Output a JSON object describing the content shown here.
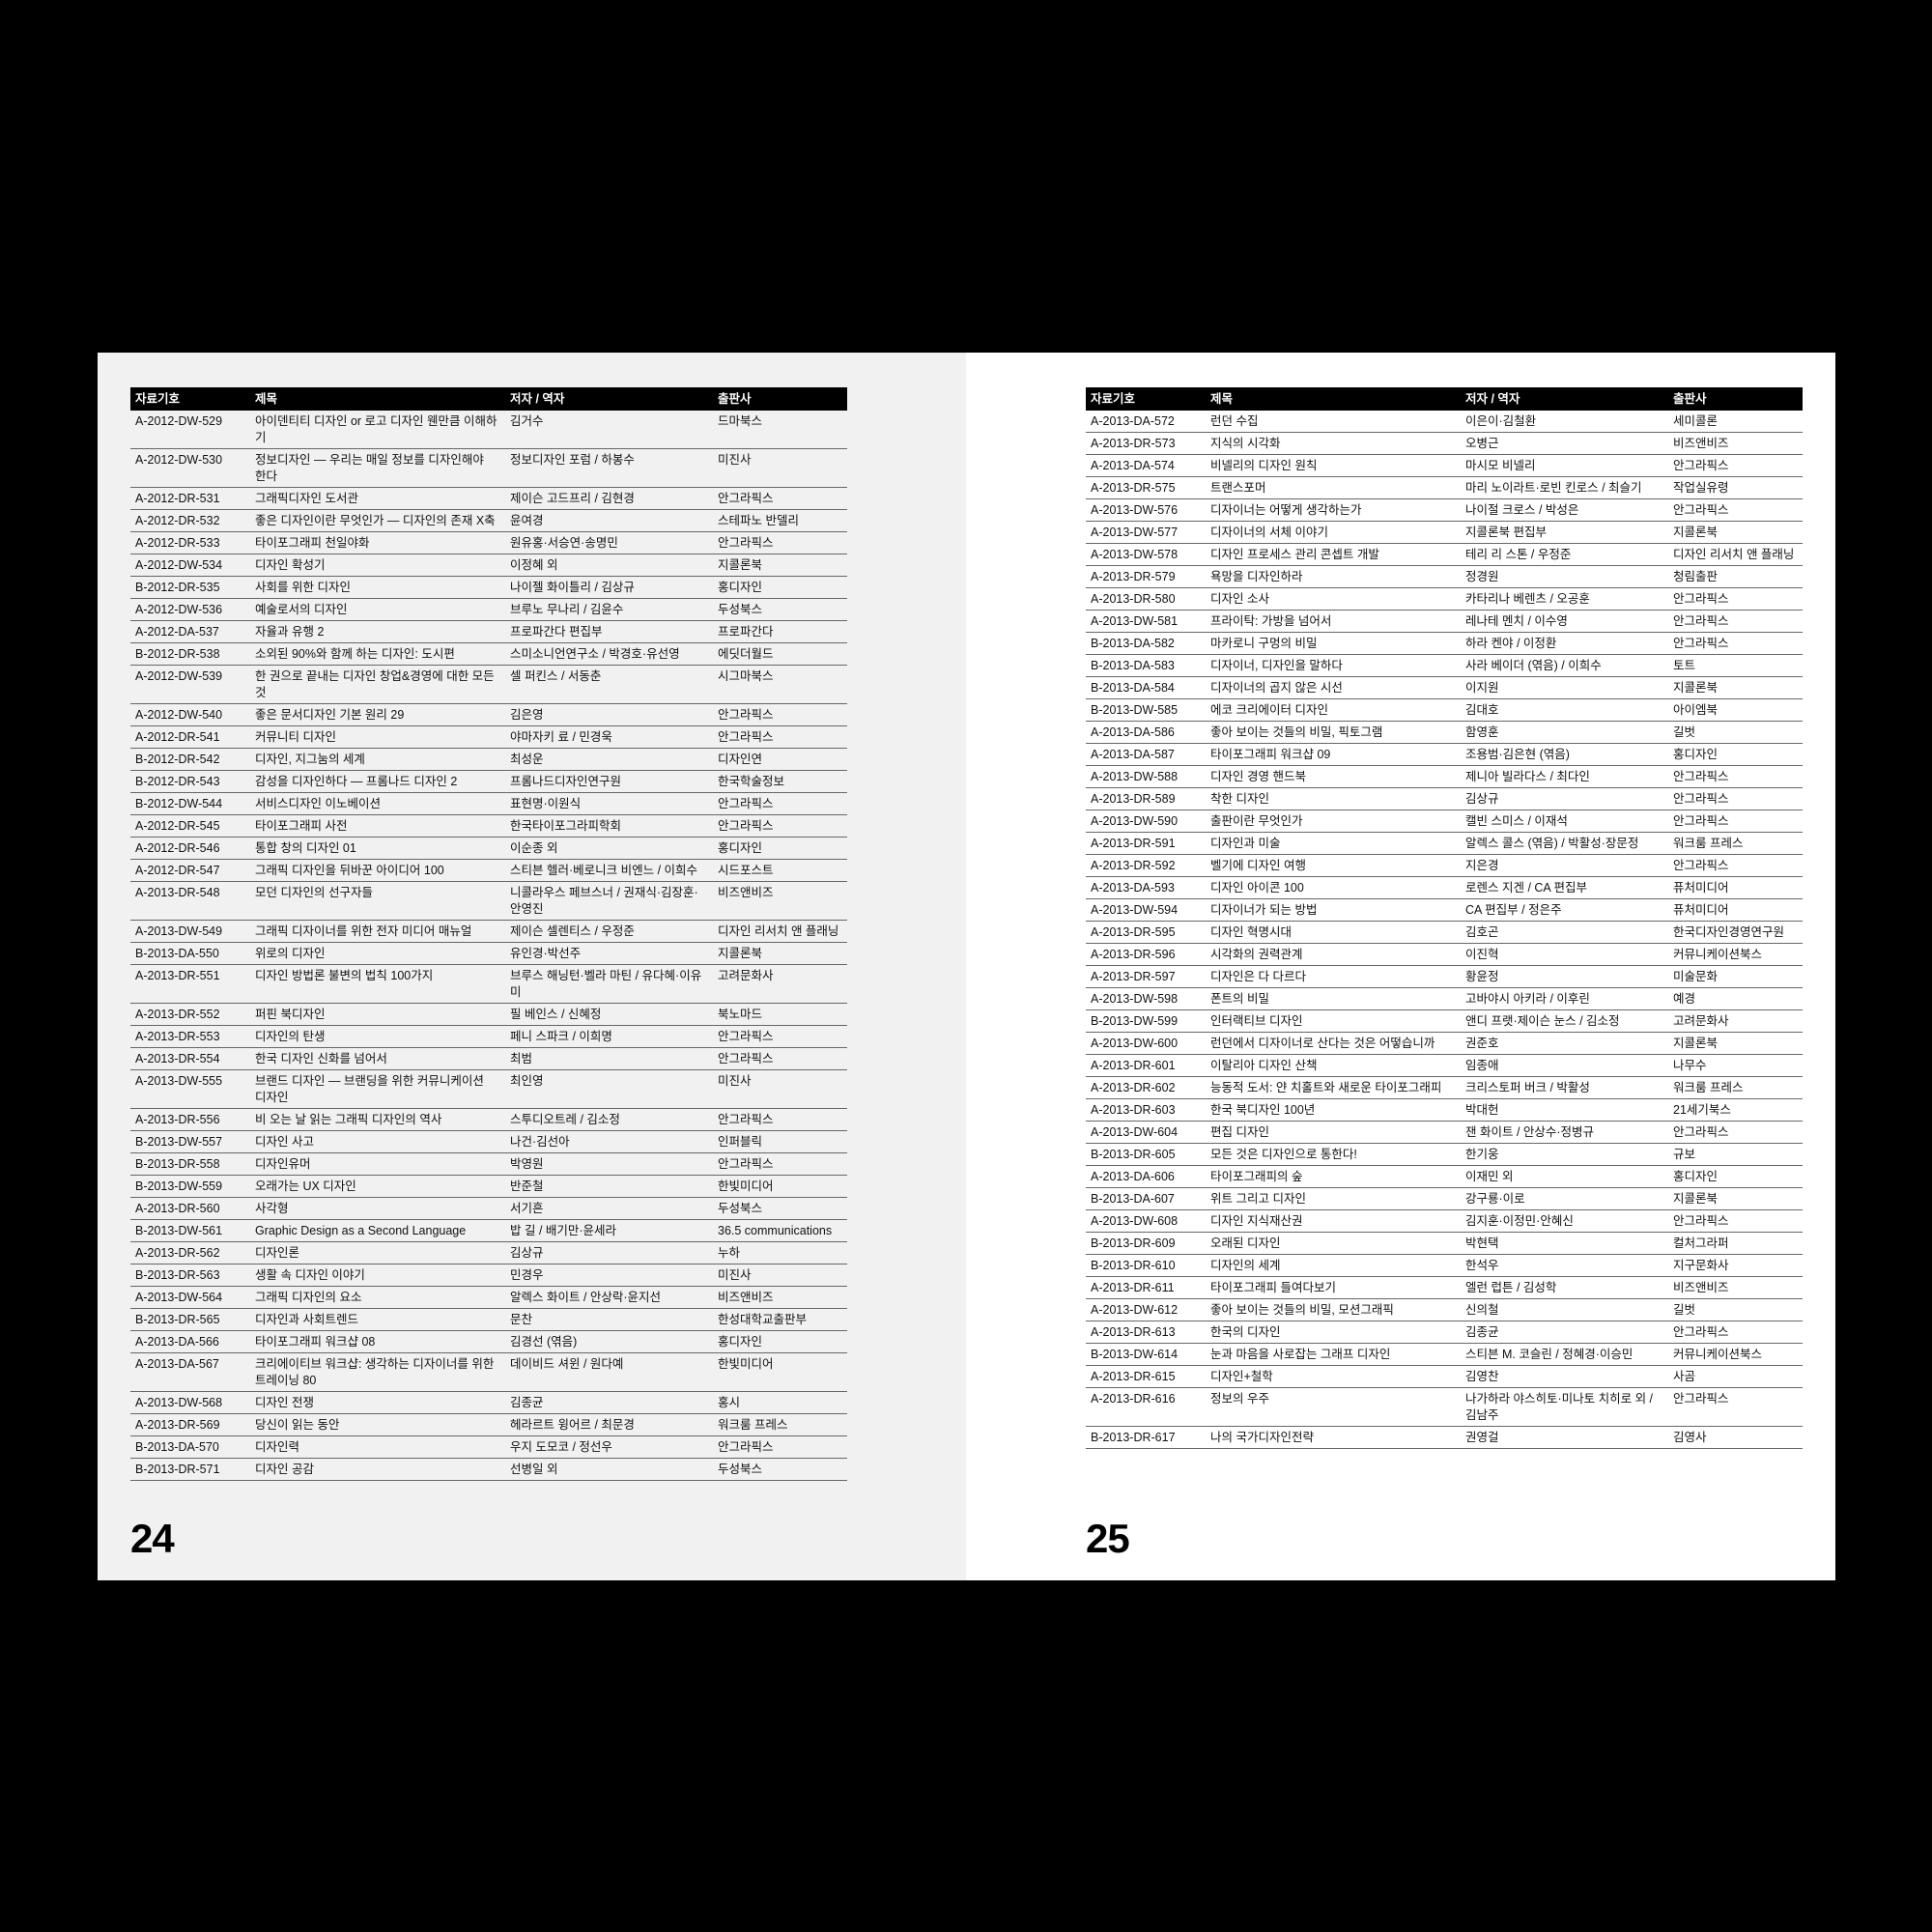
{
  "columns": [
    "자료기호",
    "제목",
    "저자 / 역자",
    "출판사"
  ],
  "left_page": {
    "page_number": "24",
    "rows": [
      [
        "A-2012-DW-529",
        "아이덴티티 디자인 or 로고 디자인 웬만큼 이해하기",
        "김거수",
        "드마북스"
      ],
      [
        "A-2012-DW-530",
        "정보디자인 — 우리는 매일 정보를 디자인해야 한다",
        "정보디자인 포럼 / 하봉수",
        "미진사"
      ],
      [
        "A-2012-DR-531",
        "그래픽디자인 도서관",
        "제이슨 고드프리 / 김현경",
        "안그라픽스"
      ],
      [
        "A-2012-DR-532",
        "좋은 디자인이란 무엇인가 — 디자인의 존재 X축",
        "윤여경",
        "스테파노 반델리"
      ],
      [
        "A-2012-DR-533",
        "타이포그래피 천일야화",
        "원유홍·서승연·송명민",
        "안그라픽스"
      ],
      [
        "A-2012-DW-534",
        "디자인 확성기",
        "이정혜 외",
        "지콜론북"
      ],
      [
        "B-2012-DR-535",
        "사회를 위한 디자인",
        "나이젤 화이틀리 / 김상규",
        "홍디자인"
      ],
      [
        "A-2012-DW-536",
        "예술로서의 디자인",
        "브루노 무나리 / 김윤수",
        "두성북스"
      ],
      [
        "A-2012-DA-537",
        "자율과 유행 2",
        "프로파간다 편집부",
        "프로파간다"
      ],
      [
        "B-2012-DR-538",
        "소외된 90%와 함께 하는 디자인: 도시편",
        "스미소니언연구소 / 박경호·유선영",
        "에딧더월드"
      ],
      [
        "A-2012-DW-539",
        "한 권으로 끝내는 디자인 창업&경영에 대한 모든 것",
        "셀 퍼킨스 / 서동춘",
        "시그마북스"
      ],
      [
        "A-2012-DW-540",
        "좋은 문서디자인 기본 원리 29",
        "김은영",
        "안그라픽스"
      ],
      [
        "A-2012-DR-541",
        "커뮤니티 디자인",
        "야마자키 료 / 민경욱",
        "안그라픽스"
      ],
      [
        "B-2012-DR-542",
        "디자인, 지그눔의 세계",
        "최성운",
        "디자인연"
      ],
      [
        "B-2012-DR-543",
        "감성을 디자인하다 — 프롬나드 디자인 2",
        "프롬나드디자인연구원",
        "한국학술정보"
      ],
      [
        "B-2012-DW-544",
        "서비스디자인 이노베이션",
        "표현명·이원식",
        "안그라픽스"
      ],
      [
        "A-2012-DR-545",
        "타이포그래피 사전",
        "한국타이포그라피학회",
        "안그라픽스"
      ],
      [
        "A-2012-DR-546",
        "통합 창의 디자인 01",
        "이순종 외",
        "홍디자인"
      ],
      [
        "A-2012-DR-547",
        "그래픽 디자인을 뒤바꾼 아이디어 100",
        "스티븐 헬러·베로니크 비엔느 / 이희수",
        "시드포스트"
      ],
      [
        "A-2013-DR-548",
        "모던 디자인의 선구자들",
        "니콜라우스 페브스너 / 권재식·김장훈·안영진",
        "비즈앤비즈"
      ],
      [
        "A-2013-DW-549",
        "그래픽 디자이너를 위한 전자 미디어 매뉴얼",
        "제이슨 셀렌티스 / 우정준",
        "디자인 리서치 앤 플래닝"
      ],
      [
        "B-2013-DA-550",
        "위로의 디자인",
        "유인경·박선주",
        "지콜론북"
      ],
      [
        "A-2013-DR-551",
        "디자인 방법론 불변의 법칙 100가지",
        "브루스 해닝턴·벨라 마틴 / 유다혜·이유미",
        "고려문화사"
      ],
      [
        "A-2013-DR-552",
        "퍼핀 북디자인",
        "필 베인스 / 신혜정",
        "북노마드"
      ],
      [
        "A-2013-DR-553",
        "디자인의 탄생",
        "페니 스파크 / 이희명",
        "안그라픽스"
      ],
      [
        "A-2013-DR-554",
        "한국 디자인 신화를 넘어서",
        "최범",
        "안그라픽스"
      ],
      [
        "A-2013-DW-555",
        "브랜드 디자인 — 브랜딩을 위한 커뮤니케이션 디자인",
        "최인영",
        "미진사"
      ],
      [
        "A-2013-DR-556",
        "비 오는 날 읽는 그래픽 디자인의 역사",
        "스투디오트레 / 김소정",
        "안그라픽스"
      ],
      [
        "B-2013-DW-557",
        "디자인 사고",
        "나건·김선아",
        "인퍼블릭"
      ],
      [
        "B-2013-DR-558",
        "디자인유머",
        "박영원",
        "안그라픽스"
      ],
      [
        "B-2013-DW-559",
        "오래가는 UX 디자인",
        "반준철",
        "한빛미디어"
      ],
      [
        "A-2013-DR-560",
        "사각형",
        "서기흔",
        "두성북스"
      ],
      [
        "B-2013-DW-561",
        "Graphic Design as a Second Language",
        "밥 길 / 배기만·윤세라",
        "36.5 communications"
      ],
      [
        "A-2013-DR-562",
        "디자인론",
        "김상규",
        "누하"
      ],
      [
        "B-2013-DR-563",
        "생활 속 디자인 이야기",
        "민경우",
        "미진사"
      ],
      [
        "A-2013-DW-564",
        "그래픽 디자인의 요소",
        "알렉스 화이트 / 안상락·윤지선",
        "비즈앤비즈"
      ],
      [
        "B-2013-DR-565",
        "디자인과 사회트렌드",
        "문찬",
        "한성대학교출판부"
      ],
      [
        "A-2013-DA-566",
        "타이포그래피 워크샵 08",
        "김경선 (엮음)",
        "홍디자인"
      ],
      [
        "A-2013-DA-567",
        "크리에이티브 워크샵: 생각하는 디자이너를 위한 트레이닝 80",
        "데이비드 셔윈 / 원다예",
        "한빛미디어"
      ],
      [
        "A-2013-DW-568",
        "디자인 전쟁",
        "김종균",
        "홍시"
      ],
      [
        "A-2013-DR-569",
        "당신이 읽는 동안",
        "헤라르트 윙어르 / 최문경",
        "워크룸 프레스"
      ],
      [
        "B-2013-DA-570",
        "디자인력",
        "우지 도모코 / 정선우",
        "안그라픽스"
      ],
      [
        "B-2013-DR-571",
        "디자인 공감",
        "선병일 외",
        "두성북스"
      ]
    ]
  },
  "right_page": {
    "page_number": "25",
    "rows": [
      [
        "A-2013-DA-572",
        "런던 수집",
        "이은이·김철환",
        "세미콜론"
      ],
      [
        "A-2013-DR-573",
        "지식의 시각화",
        "오병근",
        "비즈앤비즈"
      ],
      [
        "A-2013-DA-574",
        "비넬리의 디자인 원칙",
        "마시모 비넬리",
        "안그라픽스"
      ],
      [
        "A-2013-DR-575",
        "트랜스포머",
        "마리 노이라트·로빈 킨로스 / 최슬기",
        "작업실유령"
      ],
      [
        "A-2013-DW-576",
        "디자이너는 어떻게 생각하는가",
        "나이절 크로스 / 박성은",
        "안그라픽스"
      ],
      [
        "A-2013-DW-577",
        "디자이너의 서체 이야기",
        "지콜론북 편집부",
        "지콜론북"
      ],
      [
        "A-2013-DW-578",
        "디자인 프로세스 관리 콘셉트 개발",
        "테리 리 스톤 / 우정준",
        "디자인 리서치 앤 플래닝"
      ],
      [
        "A-2013-DR-579",
        "욕망을 디자인하라",
        "정경원",
        "청림출판"
      ],
      [
        "A-2013-DR-580",
        "디자인 소사",
        "카타리나 베렌츠 / 오공훈",
        "안그라픽스"
      ],
      [
        "A-2013-DW-581",
        "프라이탁: 가방을 넘어서",
        "레나테 멘치 / 이수영",
        "안그라픽스"
      ],
      [
        "B-2013-DA-582",
        "마카로니 구멍의 비밀",
        "하라 켄야 / 이정환",
        "안그라픽스"
      ],
      [
        "B-2013-DA-583",
        "디자이너, 디자인을 말하다",
        "사라 베이더 (엮음) / 이희수",
        "토트"
      ],
      [
        "B-2013-DA-584",
        "디자이너의 곱지 않은 시선",
        "이지원",
        "지콜론북"
      ],
      [
        "B-2013-DW-585",
        "에코 크리에이터 디자인",
        "김대호",
        "아이엠북"
      ],
      [
        "A-2013-DA-586",
        "좋아 보이는 것들의 비밀, 픽토그램",
        "함영훈",
        "길벗"
      ],
      [
        "A-2013-DA-587",
        "타이포그래피 워크샵 09",
        "조용범·김은현 (엮음)",
        "홍디자인"
      ],
      [
        "A-2013-DW-588",
        "디자인 경영 핸드북",
        "제니아 빌라다스 / 최다인",
        "안그라픽스"
      ],
      [
        "A-2013-DR-589",
        "착한 디자인",
        "김상규",
        "안그라픽스"
      ],
      [
        "A-2013-DW-590",
        "출판이란 무엇인가",
        "캘빈 스미스 / 이재석",
        "안그라픽스"
      ],
      [
        "A-2013-DR-591",
        "디자인과 미술",
        "알렉스 콜스 (엮음) / 박활성·장문정",
        "워크룸 프레스"
      ],
      [
        "A-2013-DR-592",
        "벨기에 디자인 여행",
        "지은경",
        "안그라픽스"
      ],
      [
        "A-2013-DA-593",
        "디자인 아이콘 100",
        "로렌스 지겐 / CA 편집부",
        "퓨처미디어"
      ],
      [
        "A-2013-DW-594",
        "디자이너가 되는 방법",
        "CA 편집부 / 정은주",
        "퓨처미디어"
      ],
      [
        "A-2013-DR-595",
        "디자인 혁명시대",
        "김호곤",
        "한국디자인경영연구원"
      ],
      [
        "A-2013-DR-596",
        "시각화의 권력관계",
        "이진혁",
        "커뮤니케이션북스"
      ],
      [
        "A-2013-DR-597",
        "디자인은 다 다르다",
        "황윤정",
        "미술문화"
      ],
      [
        "A-2013-DW-598",
        "폰트의 비밀",
        "고바야시 아키라 / 이후린",
        "예경"
      ],
      [
        "B-2013-DW-599",
        "인터랙티브 디자인",
        "앤디 프랫·제이슨 눈스 / 김소정",
        "고려문화사"
      ],
      [
        "A-2013-DW-600",
        "런던에서 디자이너로 산다는 것은 어떻습니까",
        "권준호",
        "지콜론북"
      ],
      [
        "A-2013-DR-601",
        "이탈리아 디자인 산책",
        "임종애",
        "나무수"
      ],
      [
        "A-2013-DR-602",
        "능동적 도서: 얀 치홀트와 새로운 타이포그래피",
        "크리스토퍼 버크 / 박활성",
        "워크룸 프레스"
      ],
      [
        "A-2013-DR-603",
        "한국 북디자인 100년",
        "박대헌",
        "21세기북스"
      ],
      [
        "A-2013-DW-604",
        "편집 디자인",
        "잰 화이트 / 안상수·정병규",
        "안그라픽스"
      ],
      [
        "B-2013-DR-605",
        "모든 것은 디자인으로 통한다!",
        "한기웅",
        "규보"
      ],
      [
        "A-2013-DA-606",
        "타이포그래피의 숲",
        "이재민 외",
        "홍디자인"
      ],
      [
        "B-2013-DA-607",
        "위트 그리고 디자인",
        "강구룡·이로",
        "지콜론북"
      ],
      [
        "A-2013-DW-608",
        "디자인 지식재산권",
        "김지훈·이정민·안혜신",
        "안그라픽스"
      ],
      [
        "B-2013-DR-609",
        "오래된 디자인",
        "박현택",
        "컬처그라퍼"
      ],
      [
        "B-2013-DR-610",
        "디자인의 세계",
        "한석우",
        "지구문화사"
      ],
      [
        "A-2013-DR-611",
        "타이포그래피 들여다보기",
        "엘런 럽튼 / 김성학",
        "비즈앤비즈"
      ],
      [
        "A-2013-DW-612",
        "좋아 보이는 것들의 비밀, 모션그래픽",
        "신의철",
        "길벗"
      ],
      [
        "A-2013-DR-613",
        "한국의 디자인",
        "김종균",
        "안그라픽스"
      ],
      [
        "B-2013-DW-614",
        "눈과 마음을 사로잡는 그래프 디자인",
        "스티븐 M. 코슬린 / 정혜경·이승민",
        "커뮤니케이션북스"
      ],
      [
        "A-2013-DR-615",
        "디자인+철학",
        "김영찬",
        "사곰"
      ],
      [
        "A-2013-DR-616",
        "정보의 우주",
        "나가하라 야스히토·미나토 치히로 외 / 김남주",
        "안그라픽스"
      ],
      [
        "B-2013-DR-617",
        "나의 국가디자인전략",
        "권영걸",
        "김영사"
      ]
    ]
  }
}
